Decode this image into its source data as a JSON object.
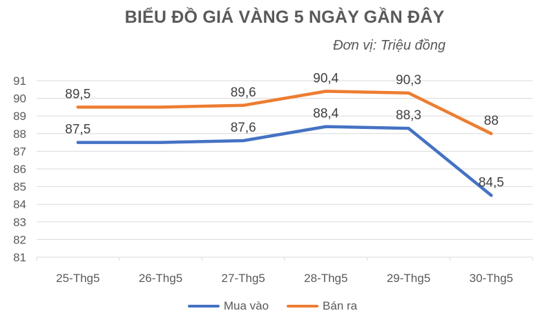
{
  "chart_data": {
    "type": "line",
    "title": "BIỂU ĐỒ GIÁ VÀNG 5 NGÀY GẦN ĐÂY",
    "subtitle": "Đơn vị: Triệu đồng",
    "categories": [
      "25-Thg5",
      "26-Thg5",
      "27-Thg5",
      "28-Thg5",
      "29-Thg5",
      "30-Thg5"
    ],
    "series": [
      {
        "name": "Mua vào",
        "color": "#4472C4",
        "values": [
          87.5,
          87.5,
          87.6,
          88.4,
          88.3,
          84.5
        ],
        "data_labels": [
          "87,5",
          "",
          "87,6",
          "88,4",
          "88,3",
          "84,5"
        ]
      },
      {
        "name": "Bán ra",
        "color": "#ED7D31",
        "values": [
          89.5,
          89.5,
          89.6,
          90.4,
          90.3,
          88
        ],
        "data_labels": [
          "89,5",
          "",
          "89,6",
          "90,4",
          "90,3",
          "88"
        ]
      }
    ],
    "ylim": [
      81,
      91
    ],
    "yticks": [
      81,
      82,
      83,
      84,
      85,
      86,
      87,
      88,
      89,
      90,
      91
    ],
    "grid": true,
    "legend_position": "bottom",
    "colors": {
      "grid": "#D9D9D9",
      "axis_text": "#595959",
      "data_label_text": "#404040",
      "title_text": "#595959"
    }
  }
}
